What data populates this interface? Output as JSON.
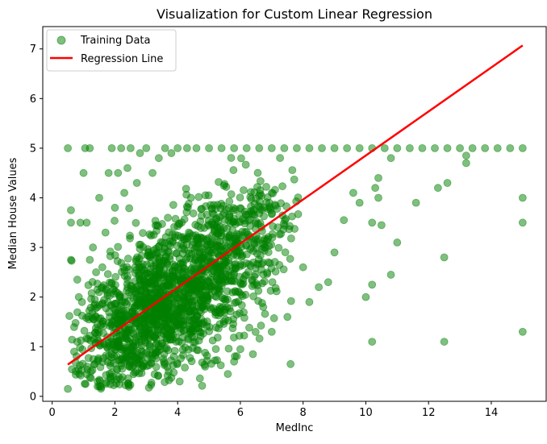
{
  "chart_data": {
    "type": "scatter",
    "title": "Visualization for Custom Linear Regression",
    "xlabel": "MedInc",
    "ylabel": "Median House Values",
    "xlim": [
      -0.3,
      15.75
    ],
    "ylim": [
      -0.1,
      7.45
    ],
    "xticks": [
      0,
      2,
      4,
      6,
      8,
      10,
      12,
      14
    ],
    "yticks": [
      0,
      1,
      2,
      3,
      4,
      5,
      6,
      7
    ],
    "grid": false,
    "legend_position": "top-left",
    "series": [
      {
        "name": "Training Data",
        "kind": "scatter",
        "color": "#008000",
        "alpha": 0.5,
        "points": [
          [
            0.5,
            5.0
          ],
          [
            0.5,
            0.15
          ],
          [
            0.55,
            1.62
          ],
          [
            0.6,
            3.75
          ],
          [
            0.6,
            3.5
          ],
          [
            0.6,
            2.75
          ],
          [
            0.7,
            0.9
          ],
          [
            0.8,
            1.1
          ],
          [
            0.85,
            2.0
          ],
          [
            0.9,
            3.5
          ],
          [
            0.95,
            1.9
          ],
          [
            1.0,
            4.5
          ],
          [
            1.05,
            5.0
          ],
          [
            1.1,
            3.5
          ],
          [
            1.2,
            5.0
          ],
          [
            1.2,
            2.75
          ],
          [
            1.3,
            3.0
          ],
          [
            1.4,
            2.5
          ],
          [
            1.5,
            4.0
          ],
          [
            1.6,
            2.6
          ],
          [
            1.7,
            3.3
          ],
          [
            1.8,
            4.5
          ],
          [
            1.9,
            5.0
          ],
          [
            2.0,
            3.8
          ],
          [
            2.1,
            4.5
          ],
          [
            2.2,
            5.0
          ],
          [
            2.3,
            4.1
          ],
          [
            2.4,
            4.6
          ],
          [
            2.5,
            5.0
          ],
          [
            2.7,
            4.3
          ],
          [
            2.8,
            4.9
          ],
          [
            3.0,
            5.0
          ],
          [
            3.2,
            4.5
          ],
          [
            3.4,
            4.8
          ],
          [
            3.6,
            5.0
          ],
          [
            3.8,
            4.9
          ],
          [
            4.0,
            5.0
          ],
          [
            4.3,
            5.0
          ],
          [
            4.6,
            5.0
          ],
          [
            5.0,
            5.0
          ],
          [
            5.4,
            5.0
          ],
          [
            5.8,
            5.0
          ],
          [
            6.2,
            5.0
          ],
          [
            6.6,
            5.0
          ],
          [
            7.0,
            5.0
          ],
          [
            7.4,
            5.0
          ],
          [
            7.8,
            5.0
          ],
          [
            8.2,
            5.0
          ],
          [
            8.6,
            5.0
          ],
          [
            9.0,
            5.0
          ],
          [
            9.4,
            5.0
          ],
          [
            9.8,
            5.0
          ],
          [
            10.2,
            5.0
          ],
          [
            10.6,
            5.0
          ],
          [
            11.0,
            5.0
          ],
          [
            11.4,
            5.0
          ],
          [
            11.8,
            5.0
          ],
          [
            12.2,
            5.0
          ],
          [
            12.6,
            5.0
          ],
          [
            13.0,
            5.0
          ],
          [
            13.4,
            5.0
          ],
          [
            13.8,
            5.0
          ],
          [
            14.2,
            5.0
          ],
          [
            14.6,
            5.0
          ],
          [
            15.0,
            5.0
          ],
          [
            15.0,
            4.0
          ],
          [
            15.0,
            3.5
          ],
          [
            15.0,
            1.3
          ],
          [
            12.5,
            2.8
          ],
          [
            12.5,
            1.1
          ],
          [
            10.2,
            1.1
          ],
          [
            11.6,
            3.9
          ],
          [
            12.3,
            4.2
          ],
          [
            12.6,
            4.3
          ],
          [
            13.2,
            4.7
          ],
          [
            13.2,
            4.85
          ],
          [
            11.0,
            3.1
          ],
          [
            10.5,
            3.45
          ],
          [
            10.2,
            3.5
          ],
          [
            10.8,
            2.45
          ],
          [
            10.2,
            2.25
          ],
          [
            10.0,
            2.0
          ],
          [
            9.3,
            3.55
          ],
          [
            9.8,
            3.9
          ],
          [
            10.4,
            4.0
          ],
          [
            10.3,
            4.2
          ],
          [
            10.4,
            4.4
          ],
          [
            9.6,
            4.1
          ],
          [
            10.8,
            4.8
          ],
          [
            9.0,
            2.9
          ],
          [
            8.8,
            2.3
          ],
          [
            8.5,
            2.2
          ],
          [
            8.2,
            1.9
          ],
          [
            8.0,
            2.6
          ],
          [
            7.6,
            0.65
          ],
          [
            6.4,
            0.85
          ],
          [
            5.6,
            0.45
          ],
          [
            5.8,
            0.7
          ],
          [
            6.0,
            0.95
          ],
          [
            7.0,
            1.3
          ],
          [
            7.5,
            1.6
          ]
        ],
        "cloud": {
          "count": 1800,
          "x_range": [
            0.5,
            8.0
          ],
          "x_mode": 3.3,
          "trend": {
            "intercept": 0.44,
            "slope": 0.4
          },
          "spread": 0.75,
          "y_clip": [
            0.15,
            4.95
          ]
        }
      },
      {
        "name": "Regression Line",
        "kind": "line",
        "color": "#ff0000",
        "points": [
          [
            0.5,
            0.64
          ],
          [
            15.0,
            7.07
          ]
        ]
      }
    ]
  }
}
